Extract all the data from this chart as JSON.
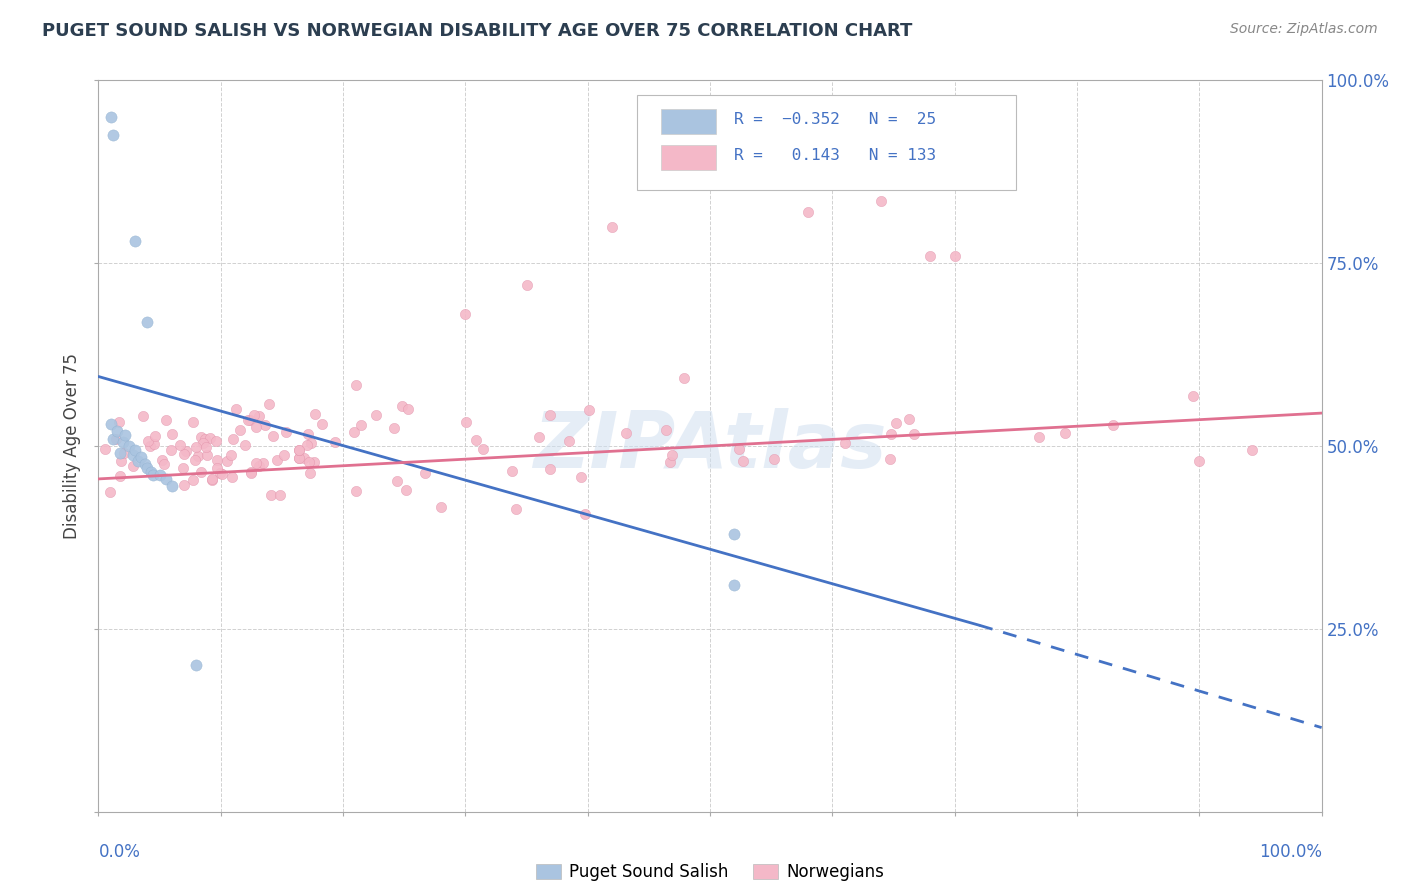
{
  "title": "PUGET SOUND SALISH VS NORWEGIAN DISABILITY AGE OVER 75 CORRELATION CHART",
  "source": "Source: ZipAtlas.com",
  "ylabel": "Disability Age Over 75",
  "xlim": [
    0,
    1
  ],
  "ylim": [
    0,
    1
  ],
  "watermark": "ZIPAtlas",
  "blue_r": -0.352,
  "blue_n": 25,
  "pink_r": 0.143,
  "pink_n": 133,
  "blue_line": {
    "x0": 0.0,
    "y0": 0.595,
    "x1": 0.72,
    "y1": 0.255
  },
  "pink_line": {
    "x0": 0.0,
    "y0": 0.455,
    "x1": 1.0,
    "y1": 0.545
  },
  "blue_dashed_line": {
    "x0": 0.72,
    "y0": 0.255,
    "x1": 1.0,
    "y1": 0.115
  },
  "title_fontsize": 13,
  "source_fontsize": 10,
  "title_color": "#2c3e50",
  "blue_color": "#aac4e0",
  "pink_color": "#f4b8c8",
  "blue_line_color": "#4472c4",
  "pink_line_color": "#e07090",
  "right_axis_color": "#4472c4",
  "background_color": "#ffffff",
  "grid_color": "#cccccc",
  "watermark_color": "#d0dff0"
}
